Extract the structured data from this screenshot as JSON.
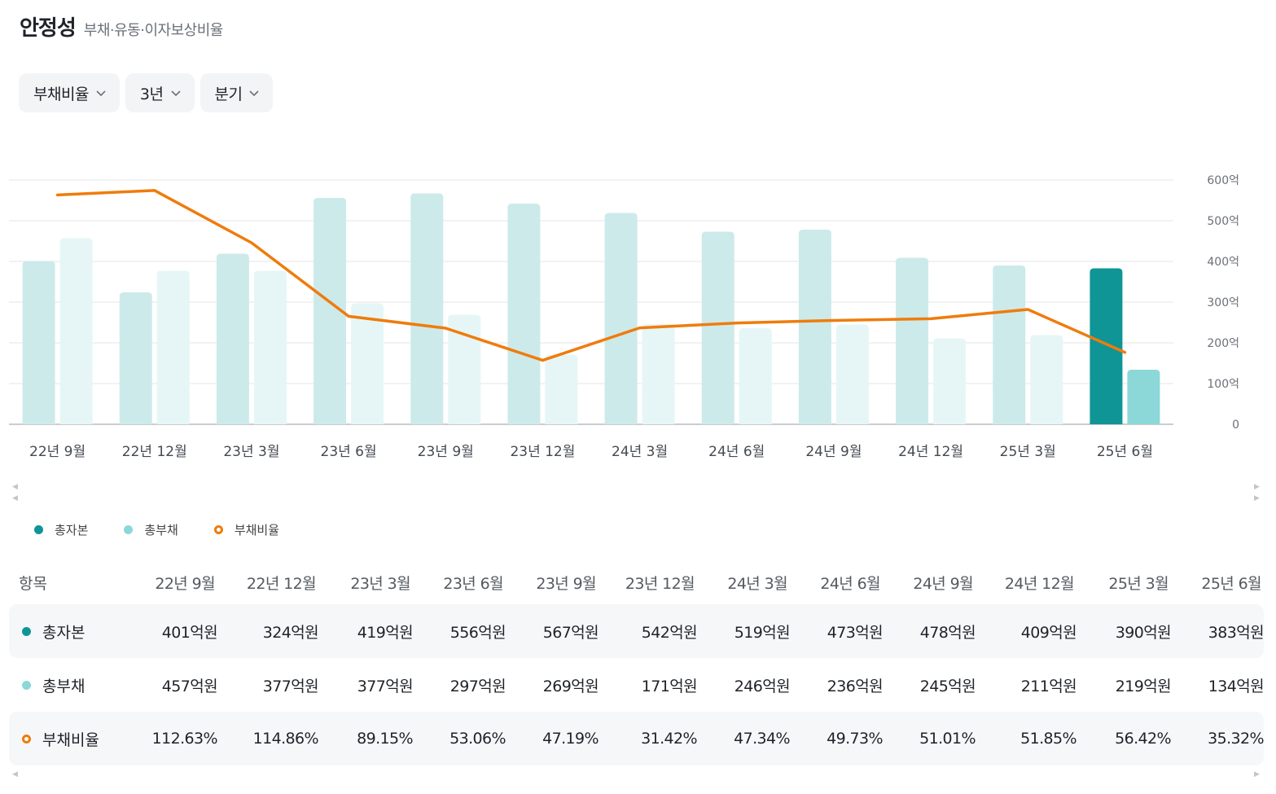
{
  "header": {
    "title": "안정성",
    "subtitle": "부채·유동·이자보상비율"
  },
  "filters": [
    {
      "label": "부채비율"
    },
    {
      "label": "3년"
    },
    {
      "label": "분기"
    }
  ],
  "colors": {
    "capital": "#0f9595",
    "capital_faded": "#cdeaeb",
    "debt": "#8cd8d8",
    "debt_faded": "#e6f6f6",
    "ratio_line": "#ef7c0c"
  },
  "chart_data": {
    "type": "bar",
    "categories": [
      "22년 9월",
      "22년 12월",
      "23년 3월",
      "23년 6월",
      "23년 9월",
      "23년 12월",
      "24년 3월",
      "24년 6월",
      "24년 9월",
      "24년 12월",
      "25년 3월",
      "25년 6월"
    ],
    "series": [
      {
        "name": "총자본",
        "values": [
          401,
          324,
          419,
          556,
          567,
          542,
          519,
          473,
          478,
          409,
          390,
          383
        ]
      },
      {
        "name": "총부채",
        "values": [
          457,
          377,
          377,
          297,
          269,
          171,
          246,
          236,
          245,
          211,
          219,
          134
        ]
      },
      {
        "name": "부채비율",
        "type": "line",
        "values": [
          112.63,
          114.86,
          89.15,
          53.06,
          47.19,
          31.42,
          47.34,
          49.73,
          51.01,
          51.85,
          56.42,
          35.32
        ]
      }
    ],
    "y_ticks": [
      "0",
      "100억",
      "200억",
      "300억",
      "400억",
      "500억",
      "600억"
    ],
    "ylim": [
      0,
      600
    ],
    "ratio_scale": [
      0,
      120
    ],
    "highlighted_index": 11,
    "grid": true
  },
  "legend": [
    {
      "label": "총자본",
      "style": "dot",
      "color": "#0f9595"
    },
    {
      "label": "총부채",
      "style": "dot",
      "color": "#8cd8d8"
    },
    {
      "label": "부채비율",
      "style": "ring",
      "color": "#ef7c0c"
    }
  ],
  "table": {
    "header_label": "항목",
    "columns": [
      "22년 9월",
      "22년 12월",
      "23년 3월",
      "23년 6월",
      "23년 9월",
      "23년 12월",
      "24년 3월",
      "24년 6월",
      "24년 9월",
      "24년 12월",
      "25년 3월",
      "25년 6월"
    ],
    "rows": [
      {
        "label": "총자본",
        "style": "dot",
        "color": "#0f9595",
        "values": [
          "401억원",
          "324억원",
          "419억원",
          "556억원",
          "567억원",
          "542억원",
          "519억원",
          "473억원",
          "478억원",
          "409억원",
          "390억원",
          "383억원"
        ]
      },
      {
        "label": "총부채",
        "style": "dot",
        "color": "#8cd8d8",
        "values": [
          "457억원",
          "377억원",
          "377억원",
          "297억원",
          "269억원",
          "171억원",
          "246억원",
          "236억원",
          "245억원",
          "211억원",
          "219억원",
          "134억원"
        ]
      },
      {
        "label": "부채비율",
        "style": "ring",
        "color": "#ef7c0c",
        "values": [
          "112.63%",
          "114.86%",
          "89.15%",
          "53.06%",
          "47.19%",
          "31.42%",
          "47.34%",
          "49.73%",
          "51.01%",
          "51.85%",
          "56.42%",
          "35.32%"
        ]
      }
    ]
  }
}
